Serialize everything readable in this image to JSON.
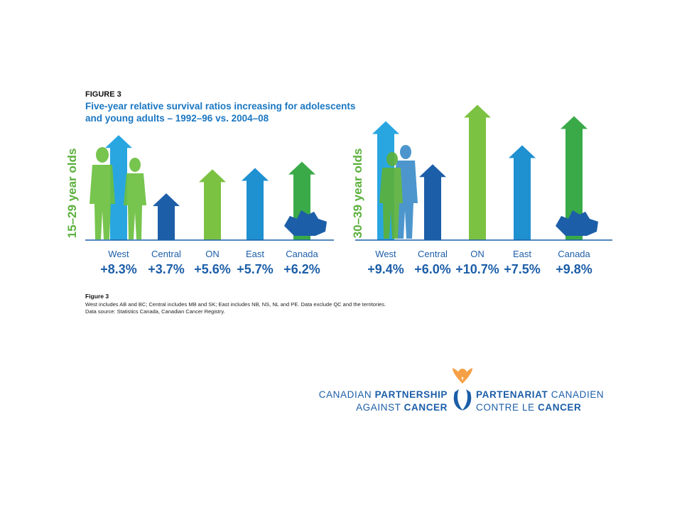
{
  "figure_label": "FIGURE 3",
  "title_lines": [
    "Five-year relative survival ratios increasing for adolescents",
    "and young adults – 1992–96 vs. 2004–08"
  ],
  "chart_data": [
    {
      "type": "bar",
      "y_label": "15–29 year olds",
      "categories": [
        "West",
        "Central",
        "ON",
        "East",
        "Canada"
      ],
      "values": [
        8.3,
        3.7,
        5.6,
        5.7,
        6.2
      ],
      "value_labels": [
        "+8.3%",
        "+3.7%",
        "+5.6%",
        "+5.7%",
        "+6.2%"
      ],
      "colors": [
        "#29a6e0",
        "#1c5ea8",
        "#7cc242",
        "#1f90d0",
        "#3aaa48"
      ]
    },
    {
      "type": "bar",
      "y_label": "30–39 year olds",
      "categories": [
        "West",
        "Central",
        "ON",
        "East",
        "Canada"
      ],
      "values": [
        9.4,
        6.0,
        10.7,
        7.5,
        9.8
      ],
      "value_labels": [
        "+9.4%",
        "+6.0%",
        "+10.7%",
        "+7.5%",
        "+9.8%"
      ],
      "colors": [
        "#29a6e0",
        "#1c5ea8",
        "#7cc242",
        "#1f90d0",
        "#3aaa48"
      ]
    }
  ],
  "notes": {
    "heading": "Figure 3",
    "lines": [
      "West includes AB and BC; Central includes MB and SK; East includes NB, NS, NL and PE. Data exclude QC and the territories.",
      "Data source: Statistics Canada, Canadian Cancer Registry."
    ]
  },
  "logo": {
    "en_line1": [
      "CANADIAN",
      "PARTNERSHIP"
    ],
    "en_line2": [
      "AGAINST",
      "CANCER"
    ],
    "fr_line1": [
      "PARTENARIAT",
      "CANADIEN"
    ],
    "fr_line2": [
      "CONTRE LE",
      "CANCER"
    ]
  }
}
